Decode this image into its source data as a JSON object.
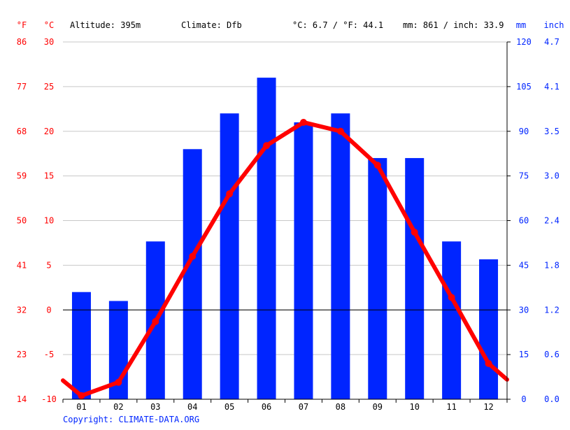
{
  "header": {
    "unit_f": "°F",
    "unit_c": "°C",
    "altitude": "Altitude: 395m",
    "climate": "Climate: Dfb",
    "avg_temp": "°C: 6.7 / °F: 44.1",
    "precip": "mm: 861 / inch: 33.9",
    "unit_mm": "mm",
    "unit_inch": "inch"
  },
  "copyright": "Copyright: CLIMATE-DATA.ORG",
  "colors": {
    "temperature": "#ff0000",
    "precipitation": "#0025ff",
    "grid": "#c8c8c8",
    "zero_line": "#000000"
  },
  "chart_data": {
    "type": "bar+line",
    "categories": [
      "01",
      "02",
      "03",
      "04",
      "05",
      "06",
      "07",
      "08",
      "09",
      "10",
      "11",
      "12"
    ],
    "series": [
      {
        "kind": "bar",
        "axis": "mm",
        "values": [
          36,
          33,
          53,
          84,
          96,
          108,
          93,
          96,
          81,
          81,
          53,
          47
        ]
      },
      {
        "kind": "line",
        "axis": "celsius",
        "values": [
          -9.6,
          -8.1,
          -1.3,
          6.0,
          13.0,
          18.4,
          21.0,
          20.0,
          16.2,
          8.7,
          1.4,
          -6.0
        ]
      }
    ],
    "line_edges": {
      "start": -7.9,
      "end": -7.8
    },
    "ylim_celsius": [
      -10,
      30
    ],
    "ylim_mm": [
      0,
      120
    ],
    "ticks_celsius": [
      "-10",
      "-5",
      "0",
      "5",
      "10",
      "15",
      "20",
      "25",
      "30"
    ],
    "ticks_fahrenheit": [
      "14",
      "23",
      "32",
      "41",
      "50",
      "59",
      "68",
      "77",
      "86"
    ],
    "ticks_mm": [
      "0",
      "15",
      "30",
      "45",
      "60",
      "75",
      "90",
      "105",
      "120"
    ],
    "ticks_inch": [
      "0.0",
      "0.6",
      "1.2",
      "1.8",
      "2.4",
      "3.0",
      "3.5",
      "4.1",
      "4.7"
    ],
    "grid": true
  }
}
